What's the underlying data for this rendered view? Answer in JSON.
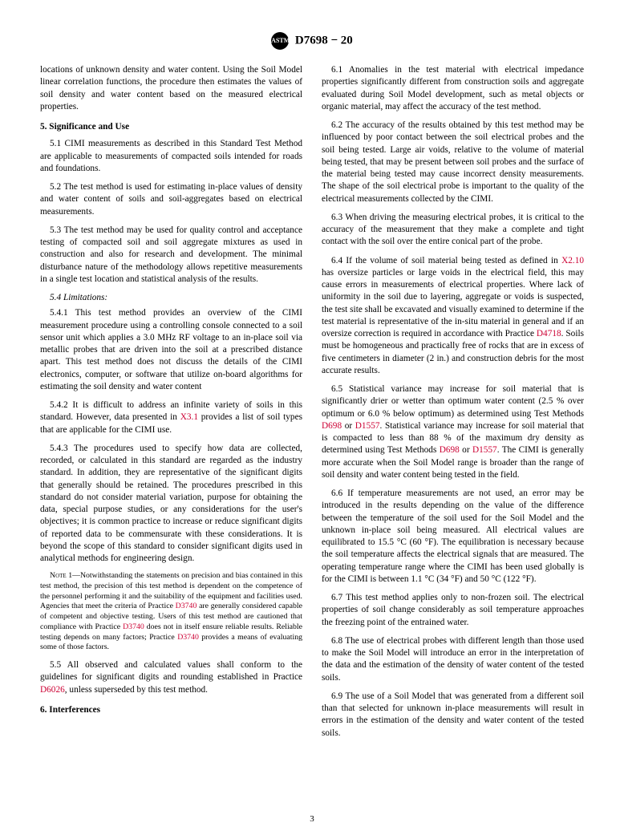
{
  "header": {
    "designation": "D7698 − 20",
    "logo_text": "ASTM"
  },
  "page_number": "3",
  "paragraphs": {
    "intro": "locations of unknown density and water content. Using the Soil Model linear correlation functions, the procedure then estimates the values of soil density and water content based on the measured electrical properties.",
    "s5_head": "5. Significance and Use",
    "s5_1": "5.1 CIMI measurements as described in this Standard Test Method are applicable to measurements of compacted soils intended for roads and foundations.",
    "s5_2": "5.2 The test method is used for estimating in-place values of density and water content of soils and soil-aggregates based on electrical measurements.",
    "s5_3": "5.3 The test method may be used for quality control and acceptance testing of compacted soil and soil aggregate mixtures as used in construction and also for research and development. The minimal disturbance nature of the methodology allows repetitive measurements in a single test location and statistical analysis of the results.",
    "s5_4_head": "5.4 Limitations:",
    "s5_4_1": "5.4.1 This test method provides an overview of the CIMI measurement procedure using a controlling console connected to a soil sensor unit which applies a 3.0 MHz RF voltage to an in-place soil via metallic probes that are driven into the soil at a prescribed distance apart. This test method does not discuss the details of the CIMI electronics, computer, or software that utilize on-board algorithms for estimating the soil density and water content",
    "s5_4_2_a": "5.4.2 It is difficult to address an infinite variety of soils in this standard. However, data presented in ",
    "s5_4_2_ref": "X3.1",
    "s5_4_2_b": " provides a list of soil types that are applicable for the CIMI use.",
    "s5_4_3": "5.4.3 The procedures used to specify how data are collected, recorded, or calculated in this standard are regarded as the industry standard. In addition, they are representative of the significant digits that generally should be retained. The procedures prescribed in this standard do not consider material variation, purpose for obtaining the data, special purpose studies, or any considerations for the user's objectives; it is common practice to increase or reduce significant digits of reported data to be commensurate with these considerations. It is beyond the scope of this standard to consider significant digits used in analytical methods for engineering design.",
    "note1_label": "Note 1—",
    "note1_a": "Notwithstanding the statements on precision and bias contained in this test method, the precision of this test method is dependent on the competence of the personnel performing it and the suitability of the equipment and facilities used. Agencies that meet the criteria of Practice ",
    "note1_ref1": "D3740",
    "note1_b": " are generally considered capable of competent and objective testing. Users of this test method are cautioned that compliance with Practice ",
    "note1_ref2": "D3740",
    "note1_c": " does not in itself ensure reliable results. Reliable testing depends on many factors; Practice ",
    "note1_ref3": "D3740",
    "note1_d": " provides a means of evaluating some of those factors.",
    "s5_5_a": "5.5 All observed and calculated values shall conform to the guidelines for significant digits and rounding established in Practice ",
    "s5_5_ref": "D6026",
    "s5_5_b": ", unless superseded by this test method.",
    "s6_head": "6. Interferences",
    "s6_1": "6.1 Anomalies in the test material with electrical impedance properties significantly different from construction soils and aggregate evaluated during Soil Model development, such as metal objects or organic material, may affect the accuracy of the test method.",
    "s6_2": "6.2 The accuracy of the results obtained by this test method may be influenced by poor contact between the soil electrical probes and the soil being tested. Large air voids, relative to the volume of material being tested, that may be present between soil probes and the surface of the material being tested may cause incorrect density measurements. The shape of the soil electrical probe is important to the quality of the electrical measurements collected by the CIMI.",
    "s6_3": "6.3 When driving the measuring electrical probes, it is critical to the accuracy of the measurement that they make a complete and tight contact with the soil over the entire conical part of the probe.",
    "s6_4_a": "6.4 If the volume of soil material being tested as defined in ",
    "s6_4_ref1": "X2.10",
    "s6_4_b": " has oversize particles or large voids in the electrical field, this may cause errors in measurements of electrical properties. Where lack of uniformity in the soil due to layering, aggregate or voids is suspected, the test site shall be excavated and visually examined to determine if the test material is representative of the in-situ material in general and if an oversize correction is required in accordance with Practice ",
    "s6_4_ref2": "D4718",
    "s6_4_c": ". Soils must be homogeneous and practically free of rocks that are in excess of five centimeters in diameter (2 in.) and construction debris for the most accurate results.",
    "s6_5_a": "6.5 Statistical variance may increase for soil material that is significantly drier or wetter than optimum water content (2.5 % over optimum or 6.0 % below optimum) as determined using Test Methods ",
    "s6_5_ref1": "D698",
    "s6_5_b": " or ",
    "s6_5_ref2": "D1557",
    "s6_5_c": ". Statistical variance may increase for soil material that is compacted to less than 88 % of the maximum dry density as determined using Test Methods ",
    "s6_5_ref3": "D698",
    "s6_5_d": " or ",
    "s6_5_ref4": "D1557",
    "s6_5_e": ". The CIMI is generally more accurate when the Soil Model range is broader than the range of soil density and water content being tested in the field.",
    "s6_6": "6.6 If temperature measurements are not used, an error may be introduced in the results depending on the value of the difference between the temperature of the soil used for the Soil Model and the unknown in-place soil being measured. All electrical values are equilibrated to 15.5 °C (60 °F). The equilibration is necessary because the soil temperature affects the electrical signals that are measured. The operating temperature range where the CIMI has been used globally is for the CIMI is between 1.1 °C (34 °F) and 50 °C (122 °F).",
    "s6_7": "6.7 This test method applies only to non-frozen soil. The electrical properties of soil change considerably as soil temperature approaches the freezing point of the entrained water.",
    "s6_8": "6.8 The use of electrical probes with different length than those used to make the Soil Model will introduce an error in the interpretation of the data and the estimation of the density of water content of the tested soils.",
    "s6_9": "6.9 The use of a Soil Model that was generated from a different soil than that selected for unknown in-place measurements will result in errors in the estimation of the density and water content of the tested soils."
  }
}
